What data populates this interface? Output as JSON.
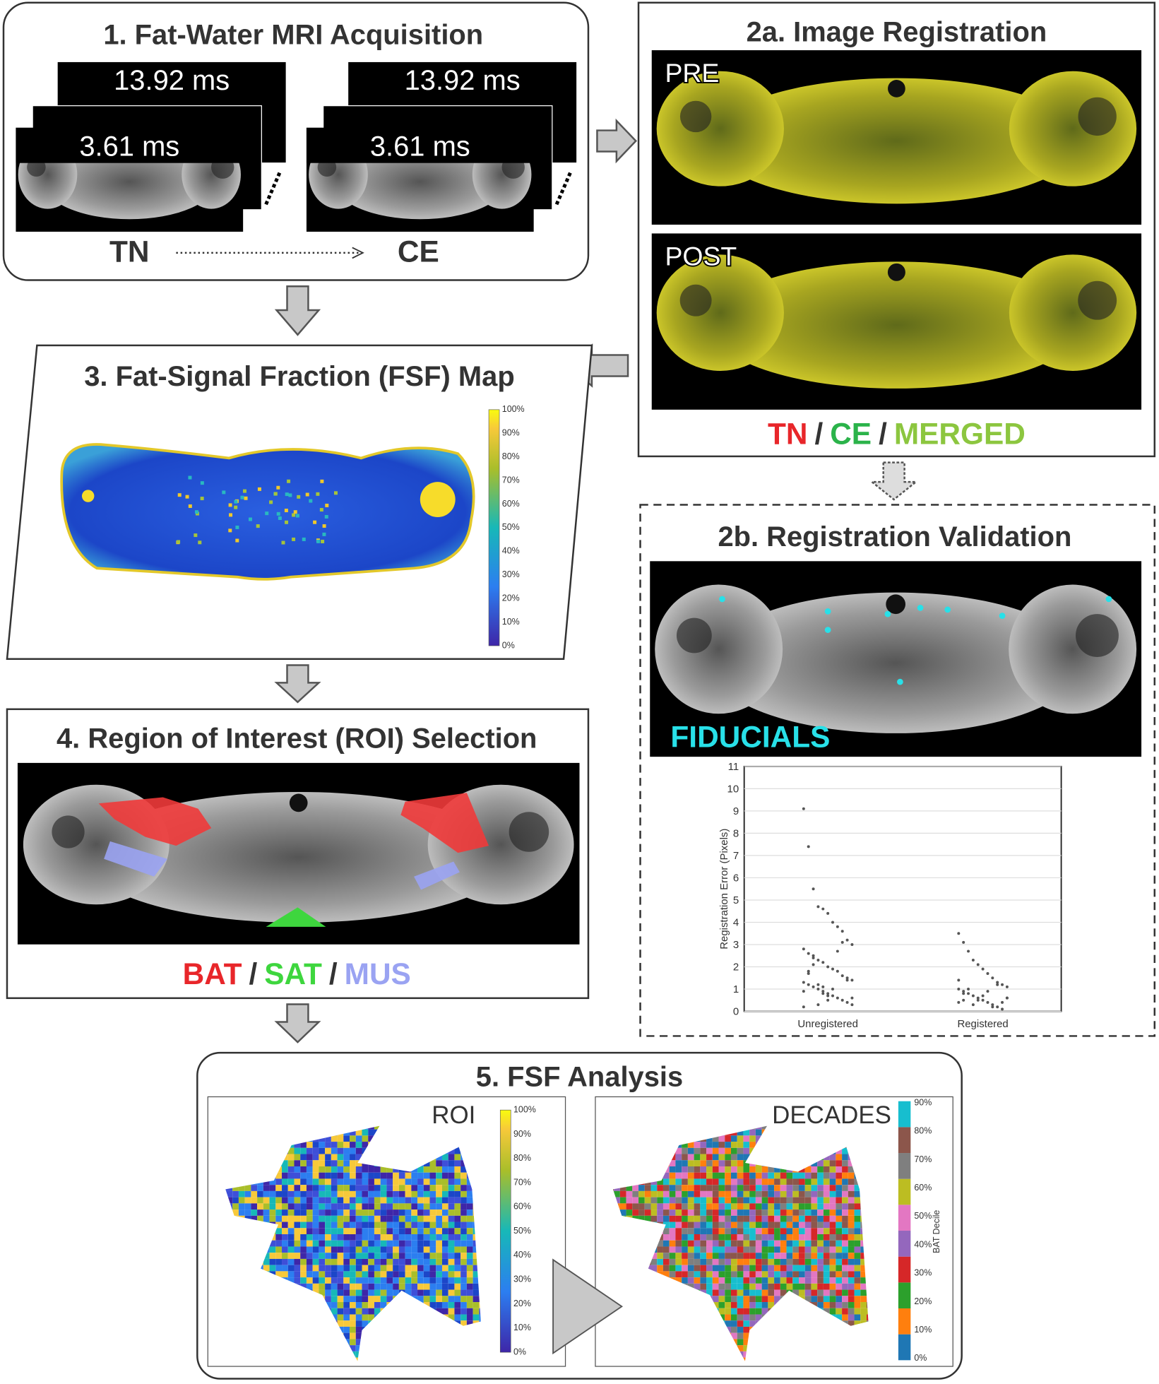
{
  "acquisition": {
    "title": "1. Fat-Water MRI Acquisition",
    "stacks": [
      {
        "long": "13.92 ms",
        "short": "3.61 ms",
        "label": "TN"
      },
      {
        "long": "13.92 ms",
        "short": "3.61 ms",
        "label": "CE"
      }
    ]
  },
  "registration": {
    "title": "2a. Image Registration",
    "images": [
      "PRE",
      "POST"
    ],
    "legend": [
      {
        "text": "TN",
        "color": "#e8262a"
      },
      {
        "text": "/",
        "color": "#333333"
      },
      {
        "text": "CE",
        "color": "#2bb34a"
      },
      {
        "text": "/",
        "color": "#333333"
      },
      {
        "text": "MERGED",
        "color": "#8cc63f"
      }
    ]
  },
  "fsf_map": {
    "title": "3. Fat-Signal Fraction (FSF) Map",
    "colorbar": [
      "0%",
      "10%",
      "20%",
      "30%",
      "40%",
      "50%",
      "60%",
      "70%",
      "80%",
      "90%",
      "100%"
    ]
  },
  "validation": {
    "title": "2b. Registration Validation",
    "image_label": "FIDUCIALS"
  },
  "chart_data": {
    "type": "strip",
    "ylabel": "Registration Error (Pixels)",
    "categories": [
      "Unregistered",
      "Registered"
    ],
    "ylim": [
      0,
      11
    ],
    "yticks": [
      0,
      1,
      2,
      3,
      4,
      5,
      6,
      7,
      8,
      9,
      10,
      11
    ],
    "grid": true,
    "series": [
      {
        "color": "#555555",
        "values": [
          9.1,
          7.4,
          5.5,
          4.7,
          4.6,
          4.4,
          4.0,
          3.8,
          3.6,
          3.2,
          3.0,
          2.8,
          2.6,
          2.5,
          2.3,
          2.2,
          2.0,
          1.9,
          1.8,
          1.6,
          1.5,
          1.4,
          1.3,
          1.2,
          1.1,
          1.0,
          0.9,
          0.8,
          0.7,
          0.6,
          0.5,
          0.4,
          0.3,
          0.2,
          1.7,
          2.1,
          1.2,
          0.8,
          0.5,
          1.0,
          2.7,
          3.1,
          1.4,
          0.6,
          0.9,
          1.8,
          2.4,
          0.3,
          1.1,
          0.7
        ]
      },
      {
        "color": "#555555",
        "values": [
          3.5,
          3.1,
          2.7,
          2.3,
          2.1,
          1.9,
          1.7,
          1.5,
          1.3,
          1.2,
          1.1,
          1.0,
          0.9,
          0.8,
          0.7,
          0.6,
          0.5,
          0.4,
          0.3,
          0.2,
          0.1,
          0.6,
          0.4,
          0.8,
          1.0,
          0.3,
          0.5,
          0.7,
          0.9,
          0.2,
          1.2,
          0.4,
          0.6,
          1.4,
          0.5
        ]
      }
    ]
  },
  "roi": {
    "title": "4. Region of Interest (ROI) Selection",
    "legend": [
      {
        "text": "BAT",
        "color": "#e8262a"
      },
      {
        "text": "/",
        "color": "#333333"
      },
      {
        "text": "SAT",
        "color": "#3ed63e"
      },
      {
        "text": "/",
        "color": "#333333"
      },
      {
        "text": "MUS",
        "color": "#9aa3f2"
      }
    ]
  },
  "analysis": {
    "title": "5. FSF Analysis",
    "roi_label": "ROI",
    "roi_colorbar": [
      "0%",
      "10%",
      "20%",
      "30%",
      "40%",
      "50%",
      "60%",
      "70%",
      "80%",
      "90%",
      "100%"
    ],
    "decades_label": "DECADES",
    "decades_colorbar": {
      "label": "BAT Decile",
      "ticks": [
        "0%",
        "10%",
        "20%",
        "30%",
        "40%",
        "50%",
        "60%",
        "70%",
        "80%",
        "90%"
      ],
      "colors": [
        "#1f77b4",
        "#ff7f0e",
        "#2ca02c",
        "#d62728",
        "#9467bd",
        "#e377c2",
        "#bcbd22",
        "#7f7f7f",
        "#8c564b",
        "#17becf"
      ]
    }
  }
}
